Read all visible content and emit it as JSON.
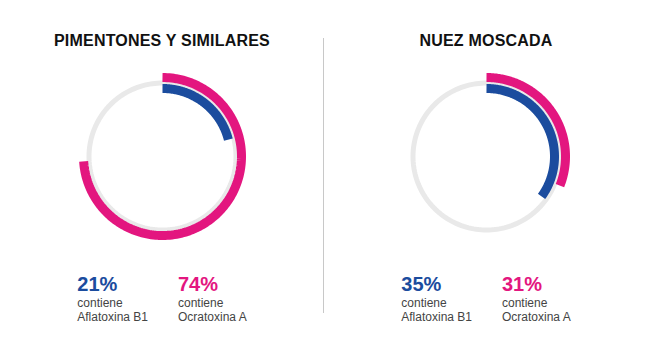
{
  "chart_data": [
    {
      "type": "radial_bar",
      "title": "PIMENTONES Y SIMILARES",
      "categories": [
        "Aflatoxina B1",
        "Ocratoxina A"
      ],
      "values": [
        21,
        74
      ],
      "value_labels": [
        "21%",
        "74%"
      ],
      "colors": [
        "#1b4c9e",
        "#e3167f"
      ],
      "annotation": "contiene",
      "ylim": [
        0,
        100
      ],
      "data_labels": true,
      "tick_labels": false
    },
    {
      "type": "radial_bar",
      "title": "NUEZ MOSCADA",
      "categories": [
        "Aflatoxina B1",
        "Ocratoxina A"
      ],
      "values": [
        35,
        31
      ],
      "value_labels": [
        "35%",
        "31%"
      ],
      "colors": [
        "#1b4c9e",
        "#e3167f"
      ],
      "annotation": "contiene",
      "ylim": [
        0,
        100
      ],
      "data_labels": true,
      "tick_labels": false
    }
  ]
}
